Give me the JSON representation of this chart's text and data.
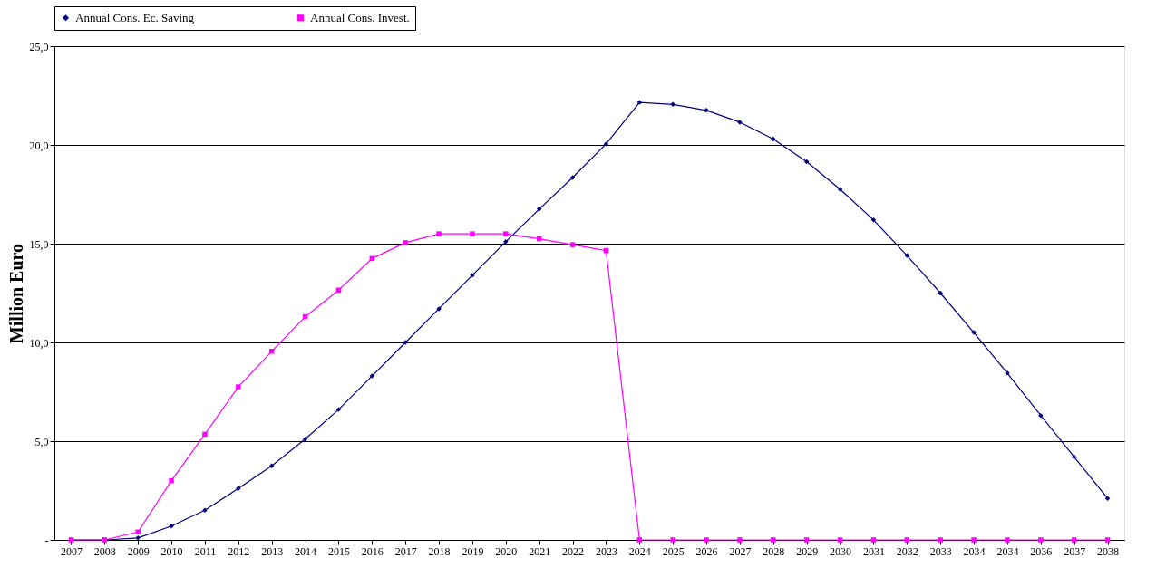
{
  "chart_data": {
    "type": "line",
    "ylabel": "Million Euro",
    "categories": [
      "2007",
      "2008",
      "2009",
      "2010",
      "2011",
      "2012",
      "2013",
      "2014",
      "2015",
      "2016",
      "2017",
      "2018",
      "2019",
      "2020",
      "2021",
      "2022",
      "2023",
      "2024",
      "2025",
      "2026",
      "2027",
      "2028",
      "2029",
      "2030",
      "2031",
      "2032",
      "2033",
      "2034",
      "2034",
      "2036",
      "2037",
      "2038"
    ],
    "series": [
      {
        "name": "Annual Cons. Ec. Saving",
        "color": "#000080",
        "marker": "diamond",
        "values": [
          0,
          0,
          0.1,
          0.7,
          1.5,
          2.6,
          3.75,
          5.1,
          6.6,
          8.3,
          10.0,
          11.7,
          13.4,
          15.1,
          16.75,
          18.35,
          20.05,
          22.15,
          22.05,
          21.75,
          21.15,
          20.3,
          19.15,
          17.75,
          16.2,
          14.4,
          12.5,
          10.5,
          8.45,
          6.3,
          4.2,
          2.1
        ]
      },
      {
        "name": "Annual Cons. Invest.",
        "color": "#ff00ff",
        "marker": "square",
        "values": [
          0,
          0,
          0.4,
          3.0,
          5.35,
          7.75,
          9.55,
          11.3,
          12.65,
          14.25,
          15.05,
          15.5,
          15.5,
          15.5,
          15.25,
          14.95,
          14.65,
          0,
          0,
          0,
          0,
          0,
          0,
          0,
          0,
          0,
          0,
          0,
          0,
          0,
          0,
          0
        ]
      }
    ],
    "ylim": [
      0,
      25
    ],
    "yticks": [
      {
        "value": 0,
        "label": "-"
      },
      {
        "value": 5,
        "label": "5,0"
      },
      {
        "value": 10,
        "label": "10,0"
      },
      {
        "value": 15,
        "label": "15,0"
      },
      {
        "value": 20,
        "label": "20,0"
      },
      {
        "value": 25,
        "label": "25,0"
      }
    ],
    "grid": "y",
    "legend": "top"
  }
}
